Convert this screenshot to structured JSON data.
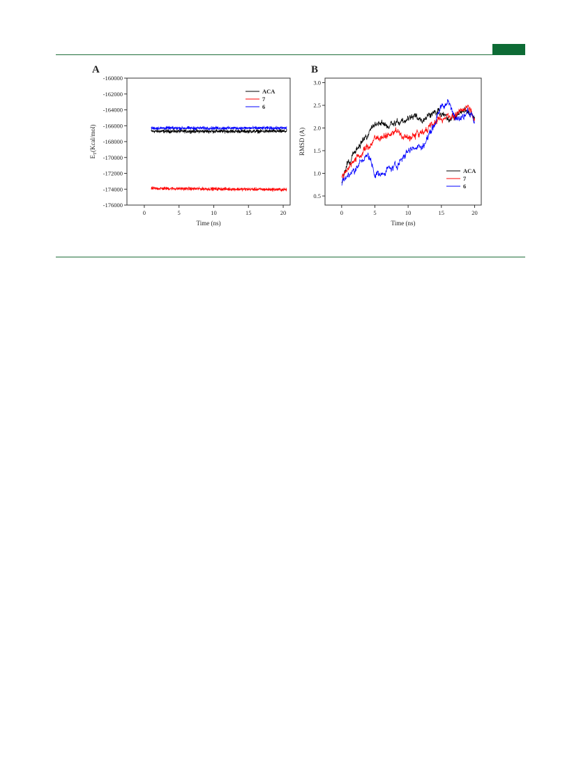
{
  "colors": {
    "ACA": "#000000",
    "7": "#ff0000",
    "6": "#0000ff",
    "accent": "#0d6b35"
  },
  "chart_data": [
    {
      "panel": "A",
      "type": "line",
      "xlabel": "Time (ns)",
      "ylabel": "E",
      "ylabel_sub": "T",
      "ylabel_unit": "(Kcal/mol)",
      "xlim": [
        -2.5,
        21
      ],
      "ylim": [
        -176000,
        -160000
      ],
      "xticks": [
        0,
        5,
        10,
        15,
        20
      ],
      "yticks": [
        -176000,
        -174000,
        -172000,
        -170000,
        -168000,
        -166000,
        -164000,
        -162000,
        -160000
      ],
      "legend_position": "top-right",
      "series": [
        {
          "name": "ACA",
          "x": [
            1,
            20.5
          ],
          "mean": -166700,
          "noise": 350,
          "drift": 0
        },
        {
          "name": "7",
          "x": [
            1,
            20.5
          ],
          "mean": -173900,
          "noise": 320,
          "drift": -150
        },
        {
          "name": "6",
          "x": [
            1,
            20.5
          ],
          "mean": -166300,
          "noise": 320,
          "drift": 0
        }
      ]
    },
    {
      "panel": "B",
      "type": "line",
      "xlabel": "Time (ns)",
      "ylabel": "RMSD (A)",
      "xlim": [
        -2.5,
        21
      ],
      "ylim": [
        0.3,
        3.1
      ],
      "xticks": [
        0,
        5,
        10,
        15,
        20
      ],
      "yticks": [
        0.5,
        1.0,
        1.5,
        2.0,
        2.5,
        3.0
      ],
      "legend_position": "bottom-right",
      "series": [
        {
          "name": "ACA",
          "x": [
            0,
            1,
            2,
            3,
            4,
            5,
            6,
            7,
            8,
            9,
            10,
            11,
            12,
            13,
            14,
            15,
            16,
            17,
            18,
            19,
            20
          ],
          "values": [
            0.8,
            1.2,
            1.5,
            1.7,
            1.85,
            2.05,
            2.1,
            2.05,
            2.1,
            2.15,
            2.2,
            2.25,
            2.2,
            2.3,
            2.35,
            2.3,
            2.2,
            2.25,
            2.35,
            2.4,
            2.25
          ]
        },
        {
          "name": "7",
          "x": [
            0,
            1,
            2,
            3,
            4,
            5,
            6,
            7,
            8,
            9,
            10,
            11,
            12,
            13,
            14,
            15,
            16,
            17,
            18,
            19,
            20
          ],
          "values": [
            0.9,
            1.15,
            1.3,
            1.45,
            1.6,
            1.75,
            1.85,
            1.8,
            1.95,
            1.85,
            1.75,
            1.85,
            1.9,
            2.0,
            2.1,
            2.2,
            2.3,
            2.25,
            2.35,
            2.5,
            2.2
          ]
        },
        {
          "name": "6",
          "x": [
            0,
            1,
            2,
            3,
            4,
            5,
            6,
            7,
            8,
            9,
            10,
            11,
            12,
            13,
            14,
            15,
            16,
            17,
            18,
            19,
            20
          ],
          "values": [
            0.75,
            0.95,
            1.1,
            1.25,
            1.4,
            1.0,
            0.95,
            1.1,
            1.15,
            1.3,
            1.5,
            1.6,
            1.55,
            1.8,
            2.1,
            2.5,
            2.55,
            2.3,
            2.2,
            2.4,
            2.15
          ]
        }
      ]
    }
  ]
}
